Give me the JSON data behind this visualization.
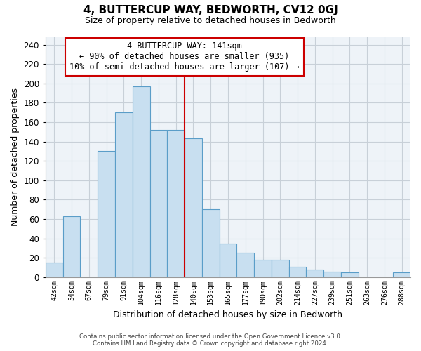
{
  "title": "4, BUTTERCUP WAY, BEDWORTH, CV12 0GJ",
  "subtitle": "Size of property relative to detached houses in Bedworth",
  "xlabel": "Distribution of detached houses by size in Bedworth",
  "ylabel": "Number of detached properties",
  "footer_lines": [
    "Contains HM Land Registry data © Crown copyright and database right 2024.",
    "Contains public sector information licensed under the Open Government Licence v3.0."
  ],
  "bin_labels": [
    "42sqm",
    "54sqm",
    "67sqm",
    "79sqm",
    "91sqm",
    "104sqm",
    "116sqm",
    "128sqm",
    "140sqm",
    "153sqm",
    "165sqm",
    "177sqm",
    "190sqm",
    "202sqm",
    "214sqm",
    "227sqm",
    "239sqm",
    "251sqm",
    "263sqm",
    "276sqm",
    "288sqm"
  ],
  "bar_heights": [
    15,
    63,
    0,
    130,
    170,
    197,
    152,
    152,
    143,
    70,
    35,
    25,
    18,
    18,
    11,
    8,
    6,
    5,
    0,
    0,
    5
  ],
  "bar_color": "#c8dff0",
  "bar_edge_color": "#5a9dc8",
  "vline_color": "#cc0000",
  "vline_index": 8,
  "ylim": [
    0,
    248
  ],
  "yticks": [
    0,
    20,
    40,
    60,
    80,
    100,
    120,
    140,
    160,
    180,
    200,
    220,
    240
  ],
  "annotation_title": "4 BUTTERCUP WAY: 141sqm",
  "annotation_line1": "← 90% of detached houses are smaller (935)",
  "annotation_line2": "10% of semi-detached houses are larger (107) →",
  "annotation_box_color": "#ffffff",
  "annotation_box_edge": "#cc0000",
  "background_color": "#ffffff",
  "grid_color": "#c8d0d8",
  "title_fontsize": 11,
  "subtitle_fontsize": 9
}
